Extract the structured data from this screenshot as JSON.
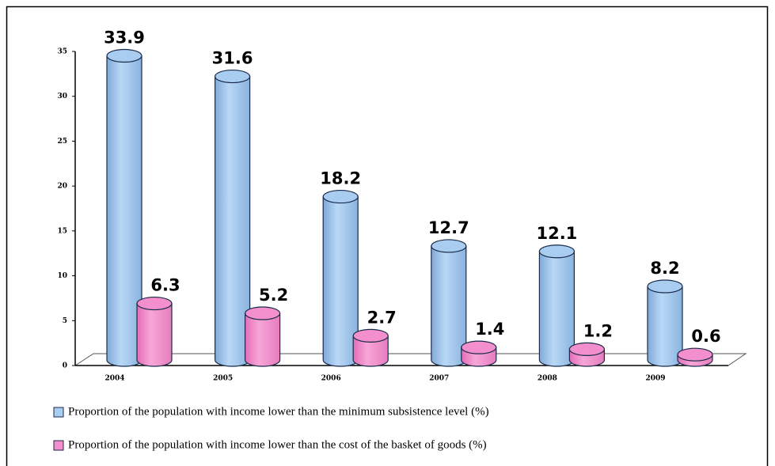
{
  "chart_data": {
    "type": "bar",
    "categories": [
      "2004",
      "2005",
      "2006",
      "2007",
      "2008",
      "2009"
    ],
    "series": [
      {
        "name": "Proportion of the population with income lower than the minimum subsistence level (%)",
        "color": "#a9cdf0",
        "values": [
          33.9,
          31.6,
          18.2,
          12.7,
          12.1,
          8.2
        ]
      },
      {
        "name": "Proportion of the population with income lower than the cost of the basket of goods (%)",
        "color": "#f28fcc",
        "values": [
          6.3,
          5.2,
          2.7,
          1.4,
          1.2,
          0.6
        ]
      }
    ],
    "ylim": [
      0,
      35
    ],
    "yticks": [
      0,
      5,
      10,
      15,
      20,
      25,
      30,
      35
    ]
  }
}
